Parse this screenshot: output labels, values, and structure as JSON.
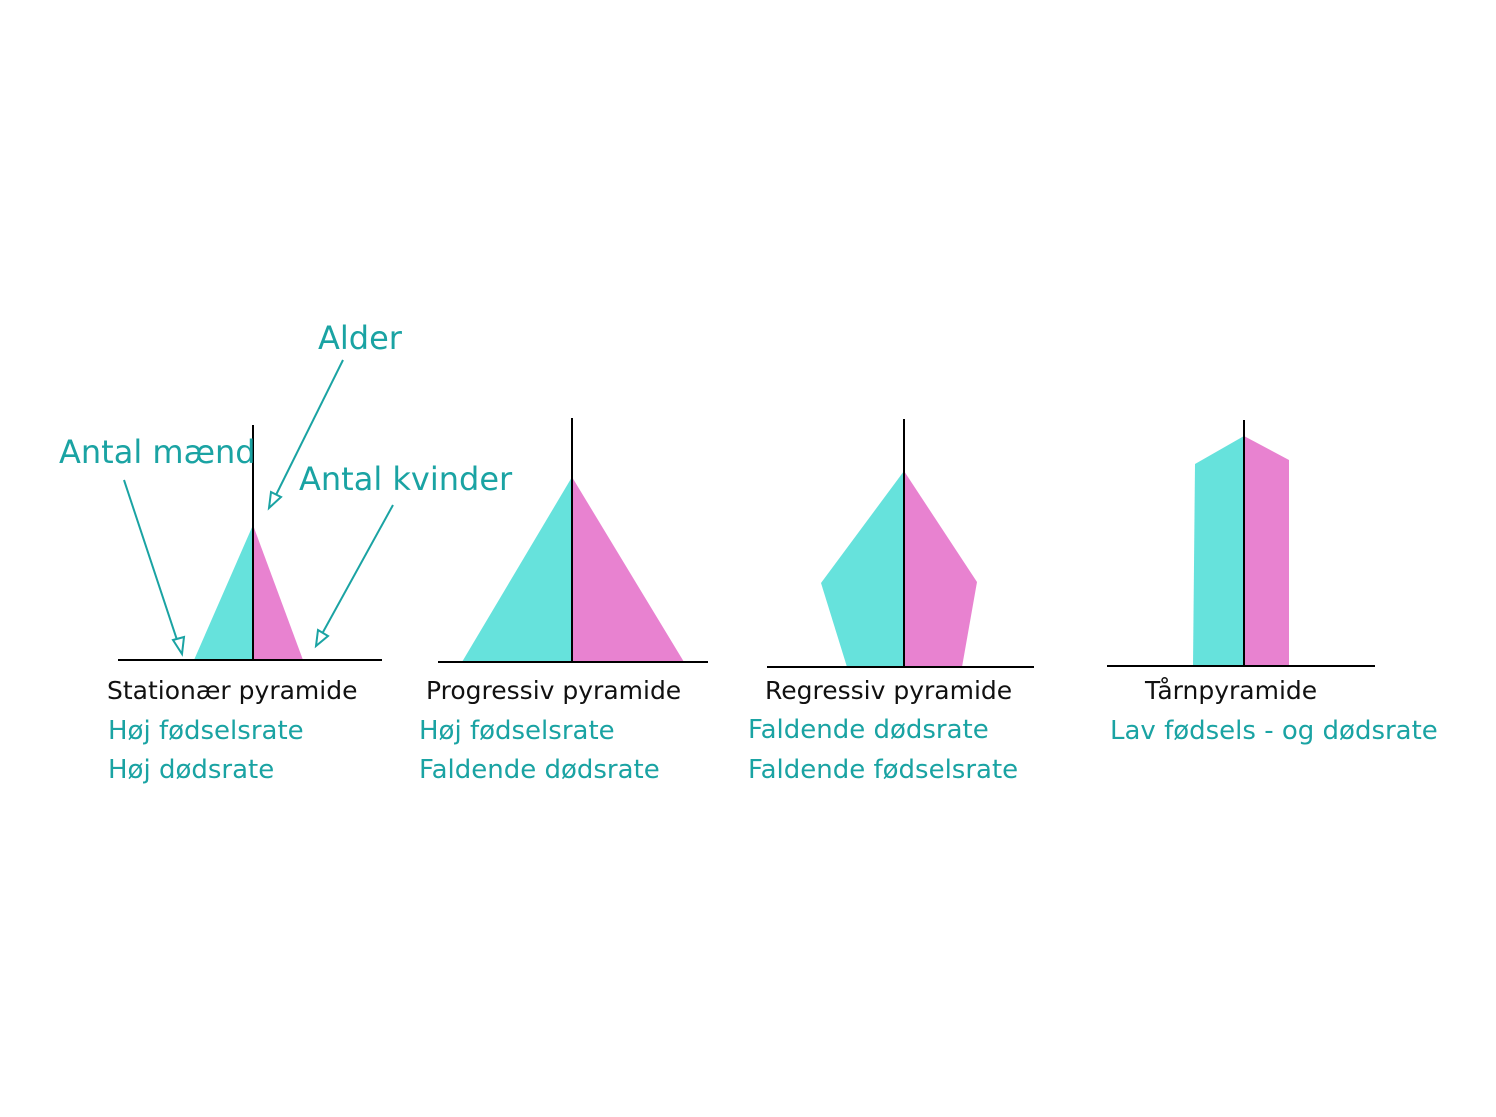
{
  "colors": {
    "male": "#66E2DC",
    "female": "#E882D0",
    "accent": "#1AA3A3",
    "text": "#111111",
    "axis": "#000000"
  },
  "callouts": {
    "age": "Alder",
    "men": "Antal mænd",
    "women": "Antal kvinder"
  },
  "pyramids": [
    {
      "title": "Stationær pyramide",
      "lines": [
        "Høj fødselsrate",
        "Høj dødsrate"
      ]
    },
    {
      "title": "Progressiv pyramide",
      "lines": [
        "Høj fødselsrate",
        "Faldende dødsrate"
      ]
    },
    {
      "title": "Regressiv pyramide",
      "lines": [
        "Faldende dødsrate",
        "Faldende fødselsrate"
      ]
    },
    {
      "title": "Tårnpyramide",
      "lines": [
        "Lav fødsels - og dødsrate"
      ]
    }
  ]
}
